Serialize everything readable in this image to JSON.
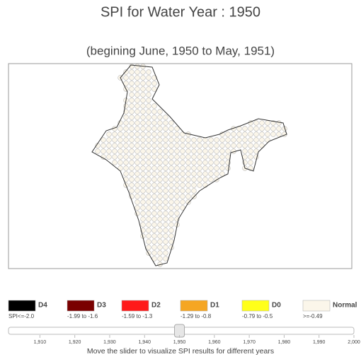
{
  "title": "SPI for Water Year : 1950",
  "subtitle": "(begining June, 1950 to May, 1951)",
  "legend": [
    {
      "label": "D4",
      "range": "SPI<=-2.0",
      "color": "#000000"
    },
    {
      "label": "D3",
      "range": "-1.99 to -1.6",
      "color": "#7a0000"
    },
    {
      "label": "D2",
      "range": "-1.59 to -1.3",
      "color": "#ff1a1a"
    },
    {
      "label": "D1",
      "range": "-1.29 to -0.8",
      "color": "#f5a623"
    },
    {
      "label": "D0",
      "range": "-0.79 to -0.5",
      "color": "#ffff1a"
    },
    {
      "label": "Normal",
      "range": ">=-0.49",
      "color": "#fbf6ea"
    }
  ],
  "slider": {
    "min": 1901,
    "max": 2000,
    "value": 1950,
    "ticks": [
      {
        "value": 1910,
        "label": "1,910"
      },
      {
        "value": 1920,
        "label": "1,920"
      },
      {
        "value": 1930,
        "label": "1,930"
      },
      {
        "value": 1940,
        "label": "1,940"
      },
      {
        "value": 1950,
        "label": "1,950"
      },
      {
        "value": 1960,
        "label": "1,960"
      },
      {
        "value": 1970,
        "label": "1,970"
      },
      {
        "value": 1980,
        "label": "1,980"
      },
      {
        "value": 1990,
        "label": "1,990"
      },
      {
        "value": 2000,
        "label": "2,000"
      }
    ],
    "caption": "Move the slider to visualize SPI results for different years"
  }
}
